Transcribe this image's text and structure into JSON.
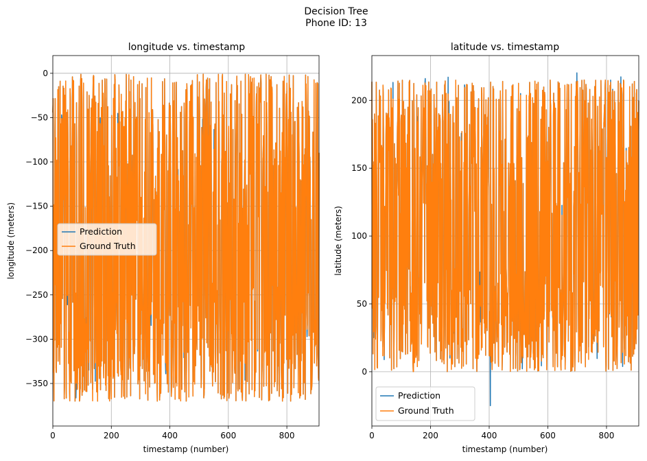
{
  "figure": {
    "suptitle_line1": "Decision Tree",
    "suptitle_line2": "Phone ID: 13"
  },
  "colors": {
    "prediction": "#1f77b4",
    "ground_truth": "#ff7f0e"
  },
  "chart_data": [
    {
      "type": "line",
      "title": "longitude vs. timestamp",
      "xlabel": "timestamp (number)",
      "ylabel": "longitude (meters)",
      "xlim": [
        0,
        910
      ],
      "ylim": [
        -398,
        20
      ],
      "xticks": [
        0,
        200,
        400,
        600,
        800
      ],
      "yticks": [
        0,
        -50,
        -100,
        -150,
        -200,
        -250,
        -300,
        -350
      ],
      "xtick_labels": [
        "0",
        "200",
        "400",
        "600",
        "800"
      ],
      "ytick_labels": [
        "0",
        "−50",
        "−100",
        "−150",
        "−200",
        "−250",
        "−300",
        "−350"
      ],
      "grid": true,
      "legend_loc": "center-left",
      "series": [
        {
          "name": "Prediction",
          "color": "#1f77b4",
          "range": [
            -380,
            2
          ]
        },
        {
          "name": "Ground Truth",
          "color": "#ff7f0e",
          "range": [
            -380,
            2
          ]
        }
      ]
    },
    {
      "type": "line",
      "title": "latitude vs. timestamp",
      "xlabel": "timestamp (number)",
      "ylabel": "latitude (meters)",
      "xlim": [
        0,
        910
      ],
      "ylim": [
        -40,
        233
      ],
      "xticks": [
        0,
        200,
        400,
        600,
        800
      ],
      "yticks": [
        0,
        50,
        100,
        150,
        200
      ],
      "xtick_labels": [
        "0",
        "200",
        "400",
        "600",
        "800"
      ],
      "ytick_labels": [
        "0",
        "50",
        "100",
        "150",
        "200"
      ],
      "grid": true,
      "legend_loc": "lower-left",
      "series": [
        {
          "name": "Prediction",
          "color": "#1f77b4",
          "range": [
            -25,
            220
          ]
        },
        {
          "name": "Ground Truth",
          "color": "#ff7f0e",
          "range": [
            -5,
            220
          ]
        }
      ]
    }
  ]
}
